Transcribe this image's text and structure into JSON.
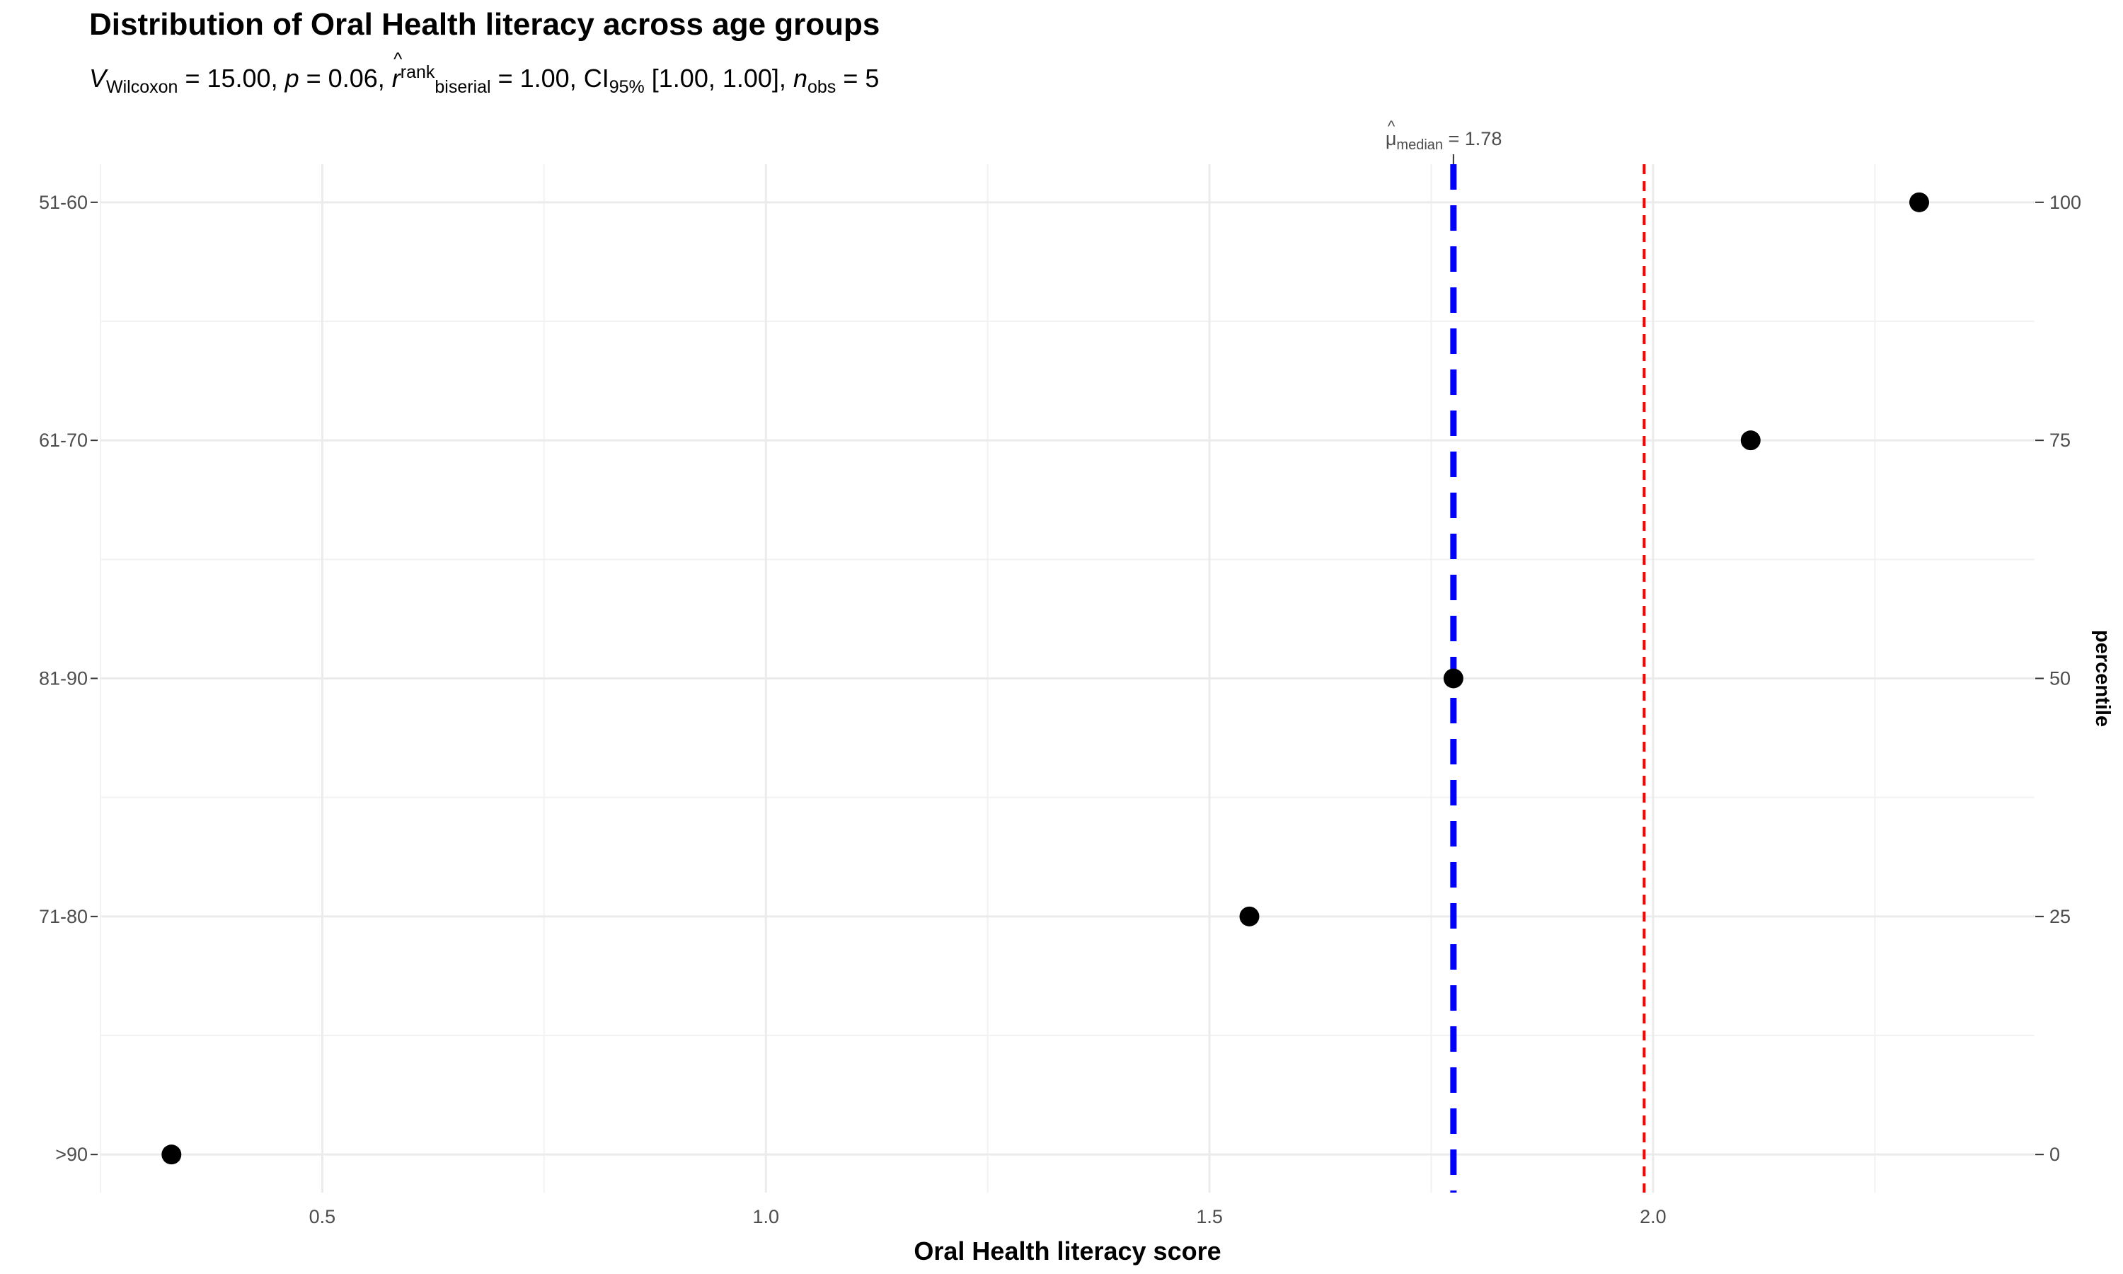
{
  "chart_data": {
    "type": "scatter",
    "title": "Distribution of Oral Health literacy across age groups",
    "subtitle": {
      "v_label": "V",
      "v_sub": "Wilcoxon",
      "v_value": "= 15.00,",
      "p_label": "p",
      "p_value": "= 0.06,",
      "r_label": "r",
      "r_sup": "rank",
      "r_sub": "biserial",
      "r_value": "= 1.00,",
      "ci_label": "CI",
      "ci_sub": "95%",
      "ci_value": "[1.00, 1.00],",
      "n_label": "n",
      "n_sub": "obs",
      "n_value": "= 5"
    },
    "xlabel": "Oral Health literacy score",
    "y2label": "percentile",
    "xlim": [
      0.25,
      2.43
    ],
    "ylim": [
      -4,
      104
    ],
    "x_major_ticks": [
      0.5,
      1.0,
      1.5,
      2.0
    ],
    "x_tick_labels": [
      "0.5",
      "1.0",
      "1.5",
      "2.0"
    ],
    "x_minor_ticks": [
      0.25,
      0.75,
      1.25,
      1.75,
      2.25
    ],
    "y_major_ticks": [
      0,
      25,
      50,
      75,
      100
    ],
    "y_minor_ticks": [
      12.5,
      37.5,
      62.5,
      87.5
    ],
    "y_left_labels": [
      ">90",
      "71-80",
      "81-90",
      "61-70",
      "51-60"
    ],
    "y_right_labels": [
      "0",
      "25",
      "50",
      "75",
      "100"
    ],
    "points": [
      {
        "x": 0.33,
        "y": 0
      },
      {
        "x": 1.545,
        "y": 25
      },
      {
        "x": 1.775,
        "y": 50
      },
      {
        "x": 2.11,
        "y": 75
      },
      {
        "x": 2.3,
        "y": 100
      }
    ],
    "median_line": {
      "x": 1.775,
      "label_symbol": "μ",
      "label_sub": "median",
      "label_value": "= 1.78",
      "color": "#0000ff"
    },
    "reference_line": {
      "x": 1.99,
      "color": "#ff0000"
    },
    "grid": true,
    "grid_color": "#ebebeb",
    "point_color": "#000000"
  }
}
